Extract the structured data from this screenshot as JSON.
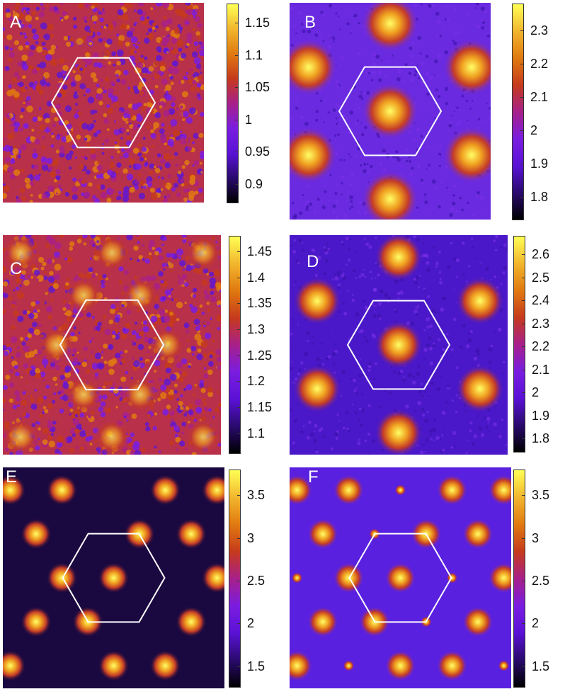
{
  "colormap": [
    "#000000",
    "#2a0a6e",
    "#5a12d6",
    "#7a1de0",
    "#a8208a",
    "#c63a1c",
    "#e07a10",
    "#f2b62e",
    "#ffff55"
  ],
  "panels": [
    {
      "label": "A",
      "pattern": "noise",
      "background": "#b8304a",
      "ticks": [
        "1.15",
        "1.1",
        "1.05",
        "1",
        "0.95",
        "0.9"
      ],
      "tick_values": [
        1.15,
        1.1,
        1.05,
        1.0,
        0.95,
        0.9
      ],
      "range": [
        0.87,
        1.18
      ]
    },
    {
      "label": "B",
      "pattern": "blobs",
      "background": "#6a2ae0",
      "ticks": [
        "2.3",
        "2.2",
        "2.1",
        "2",
        "1.9",
        "1.8"
      ],
      "tick_values": [
        2.3,
        2.2,
        2.1,
        2.0,
        1.9,
        1.8
      ],
      "range": [
        1.73,
        2.38
      ]
    },
    {
      "label": "C",
      "pattern": "noise",
      "background": "#b8304a",
      "ticks": [
        "1.45",
        "1.4",
        "1.35",
        "1.3",
        "1.25",
        "1.2",
        "1.15",
        "1.1"
      ],
      "tick_values": [
        1.45,
        1.4,
        1.35,
        1.3,
        1.25,
        1.2,
        1.15,
        1.1
      ],
      "range": [
        1.06,
        1.48
      ]
    },
    {
      "label": "D",
      "pattern": "blobs",
      "background": "#4a18c8",
      "ticks": [
        "2.6",
        "2.5",
        "2.4",
        "2.3",
        "2.2",
        "2.1",
        "2",
        "1.9",
        "1.8"
      ],
      "tick_values": [
        2.6,
        2.5,
        2.4,
        2.3,
        2.2,
        2.1,
        2.0,
        1.9,
        1.8
      ],
      "range": [
        1.74,
        2.68
      ]
    },
    {
      "label": "E",
      "pattern": "dots",
      "background": "#1a0840",
      "ticks": [
        "3.5",
        "3",
        "2.5",
        "2",
        "1.5"
      ],
      "tick_values": [
        3.5,
        3.0,
        2.5,
        2.0,
        1.5
      ],
      "range": [
        1.25,
        3.8
      ]
    },
    {
      "label": "F",
      "pattern": "dots",
      "background": "#5a20e0",
      "ticks": [
        "3.5",
        "3",
        "2.5",
        "2",
        "1.5"
      ],
      "tick_values": [
        3.5,
        3.0,
        2.5,
        2.0,
        1.5
      ],
      "range": [
        1.25,
        3.8
      ]
    }
  ]
}
